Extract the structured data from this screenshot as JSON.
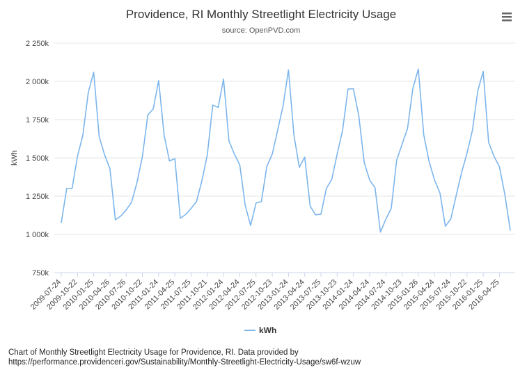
{
  "chart_data": {
    "type": "line",
    "title": "Providence, RI Monthly Streetlight Electricity Usage",
    "subtitle": "source: OpenPVD.com",
    "ylabel": "kWh",
    "xlabel": "",
    "ylim": [
      750000,
      2250000
    ],
    "yticks": [
      {
        "value": 750000,
        "label": "750k"
      },
      {
        "value": 1000000,
        "label": "1 000k"
      },
      {
        "value": 1250000,
        "label": "1 250k"
      },
      {
        "value": 1500000,
        "label": "1 500k"
      },
      {
        "value": 1750000,
        "label": "1 750k"
      },
      {
        "value": 2000000,
        "label": "2 000k"
      },
      {
        "value": 2250000,
        "label": "2 250k"
      }
    ],
    "xticks": [
      {
        "index": 0,
        "label": "2009-07-24"
      },
      {
        "index": 3,
        "label": "2009-10-22"
      },
      {
        "index": 6,
        "label": "2010-01-25"
      },
      {
        "index": 9,
        "label": "2010-04-26"
      },
      {
        "index": 12,
        "label": "2010-07-26"
      },
      {
        "index": 15,
        "label": "2010-10-22"
      },
      {
        "index": 18,
        "label": "2011-01-24"
      },
      {
        "index": 21,
        "label": "2011-04-25"
      },
      {
        "index": 24,
        "label": "2011-07-25"
      },
      {
        "index": 27,
        "label": "2011-10-21"
      },
      {
        "index": 30,
        "label": "2012-01-24"
      },
      {
        "index": 33,
        "label": "2012-04-24"
      },
      {
        "index": 36,
        "label": "2012-07-25"
      },
      {
        "index": 39,
        "label": "2012-10-23"
      },
      {
        "index": 42,
        "label": "2013-01-24"
      },
      {
        "index": 45,
        "label": "2013-04-24"
      },
      {
        "index": 48,
        "label": "2013-07-25"
      },
      {
        "index": 51,
        "label": "2013-10-23"
      },
      {
        "index": 54,
        "label": "2014-01-24"
      },
      {
        "index": 57,
        "label": "2014-04-24"
      },
      {
        "index": 60,
        "label": "2014-07-24"
      },
      {
        "index": 63,
        "label": "2014-10-23"
      },
      {
        "index": 66,
        "label": "2015-01-26"
      },
      {
        "index": 69,
        "label": "2015-04-24"
      },
      {
        "index": 72,
        "label": "2015-07-24"
      },
      {
        "index": 75,
        "label": "2015-10-22"
      },
      {
        "index": 78,
        "label": "2016-01-25"
      },
      {
        "index": 81,
        "label": "2016-04-25"
      }
    ],
    "series": [
      {
        "name": "kWh",
        "color": "#7cb5ec",
        "values": [
          1075000,
          1300000,
          1300000,
          1510000,
          1650000,
          1930000,
          2060000,
          1640000,
          1520000,
          1430000,
          1095000,
          1120000,
          1160000,
          1210000,
          1340000,
          1510000,
          1780000,
          1820000,
          2005000,
          1650000,
          1480000,
          1495000,
          1105000,
          1130000,
          1170000,
          1215000,
          1350000,
          1520000,
          1845000,
          1830000,
          2015000,
          1610000,
          1525000,
          1455000,
          1190000,
          1058000,
          1205000,
          1215000,
          1445000,
          1525000,
          1680000,
          1840000,
          2075000,
          1650000,
          1438000,
          1505000,
          1185000,
          1128000,
          1132000,
          1300000,
          1360000,
          1525000,
          1680000,
          1950000,
          1952000,
          1775000,
          1470000,
          1355000,
          1305000,
          1015000,
          1100000,
          1170000,
          1485000,
          1590000,
          1690000,
          1955000,
          2080000,
          1650000,
          1475000,
          1355000,
          1270000,
          1053000,
          1100000,
          1255000,
          1405000,
          1530000,
          1680000,
          1940000,
          2065000,
          1600000,
          1510000,
          1440000,
          1260000,
          1025000
        ]
      }
    ],
    "legend": {
      "position": "bottom-center",
      "label": "kWh"
    },
    "grid": {
      "y": true,
      "x": false
    }
  },
  "menu_icon": "hamburger-menu-icon",
  "caption": {
    "line1": "Chart of Monthly Streetlight Electricity Usage for Providence, RI. Data provided by",
    "line2": "https://performance.providenceri.gov/Sustainability/Monthly-Streetlight-Electricity-Usage/sw6f-wzuw"
  }
}
